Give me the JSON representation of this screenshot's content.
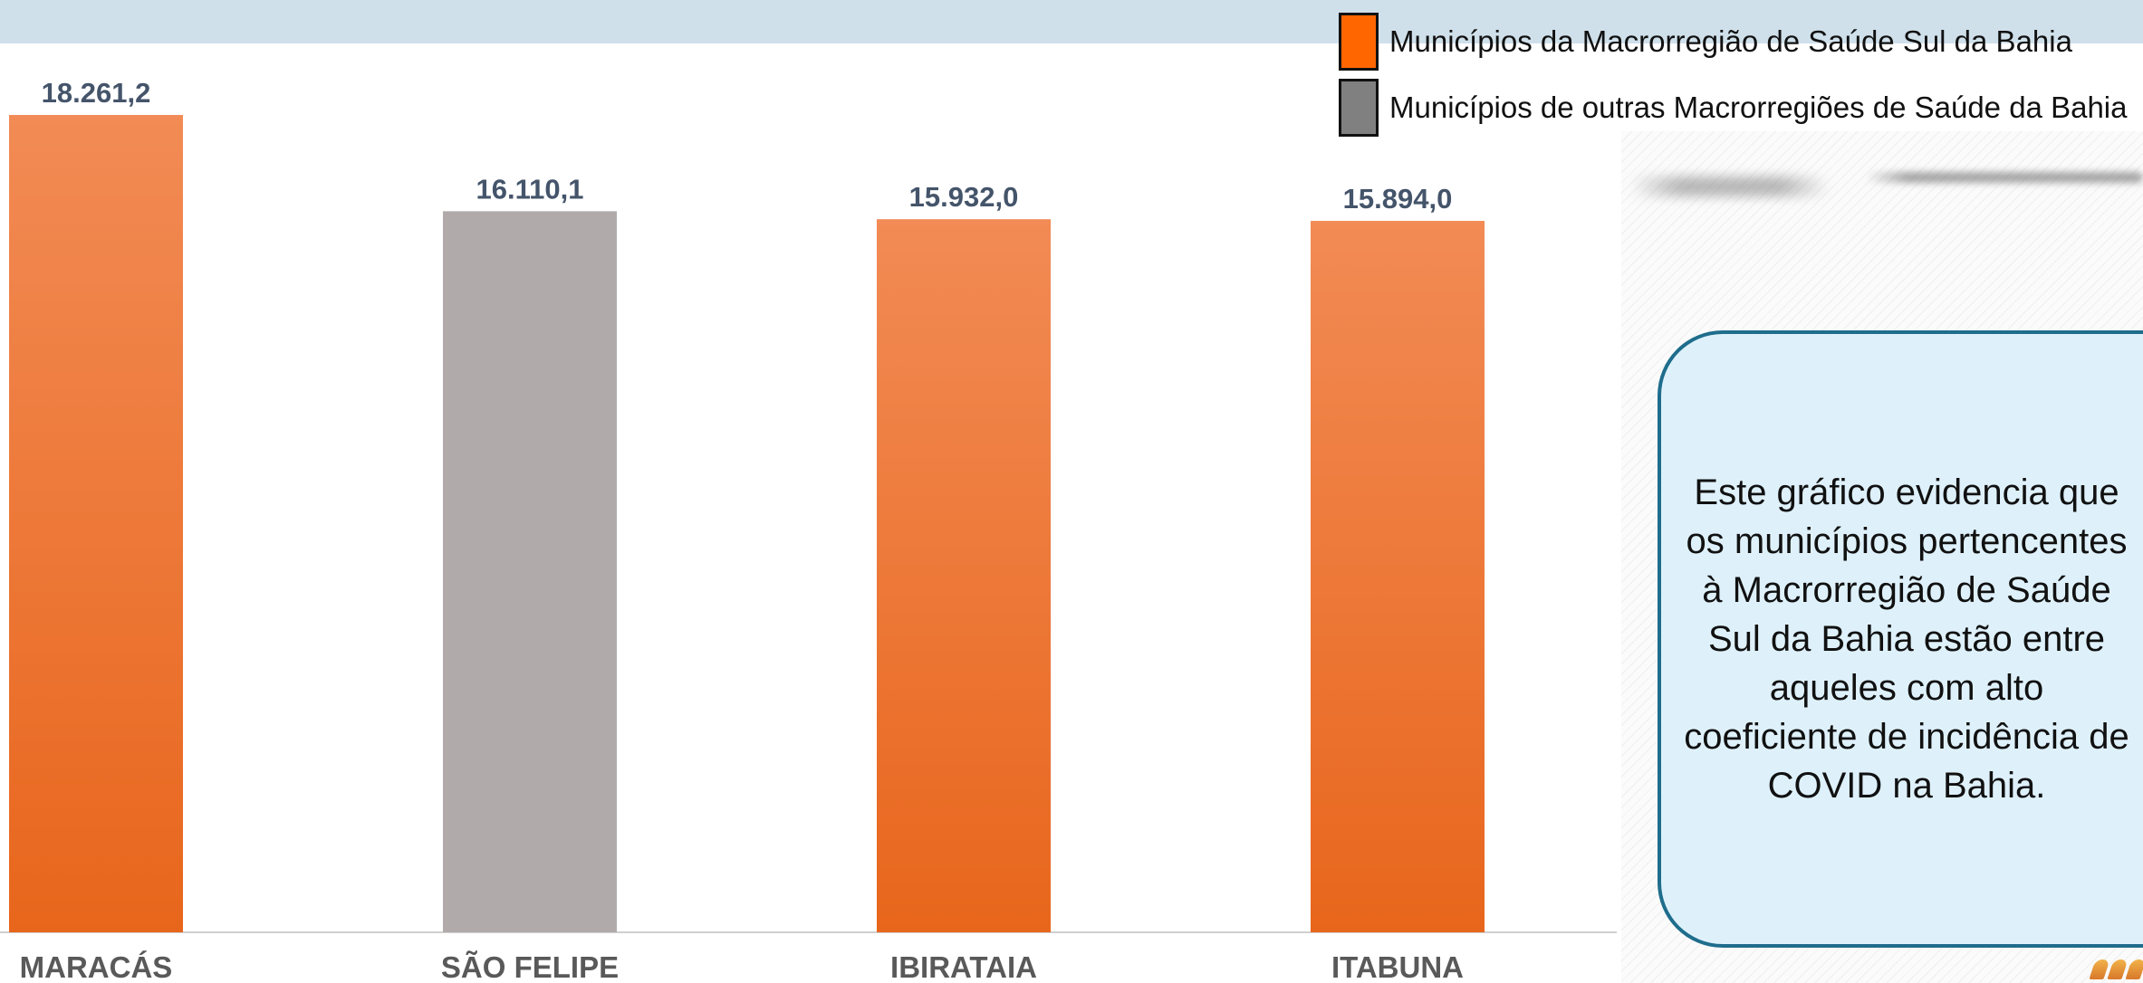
{
  "legend": {
    "items": [
      {
        "label": "Municípios da Macrorregião de Saúde Sul da Bahia",
        "color": "#ff6600"
      },
      {
        "label": "Municípios de outras Macrorregiões de Saúde da Bahia",
        "color": "#808080"
      }
    ]
  },
  "callout": {
    "text": "Este gráfico evidencia que os municípios pertencentes à Macrorregião de Saúde Sul da Bahia estão entre aqueles com alto coeficiente de incidência de COVID na Bahia."
  },
  "colors": {
    "orange_top": "#f28b55",
    "orange_bottom": "#e8661c",
    "gray": "#b0abaa",
    "value_label": "#44546a",
    "category_label": "#595959"
  },
  "chart_data": {
    "type": "bar",
    "categories": [
      "MARACÁS",
      "SÃO FELIPE",
      "IBIRATAIA",
      "ITABUNA"
    ],
    "values": [
      18261.2,
      16110.1,
      15932.0,
      15894.0
    ],
    "value_labels": [
      "18.261,2",
      "16.110,1",
      "15.932,0",
      "15.894,0"
    ],
    "groups": [
      "Sul",
      "Outras",
      "Sul",
      "Sul"
    ],
    "ylim": [
      0,
      18261.2
    ],
    "grid": false,
    "legend_position": "top-right"
  }
}
